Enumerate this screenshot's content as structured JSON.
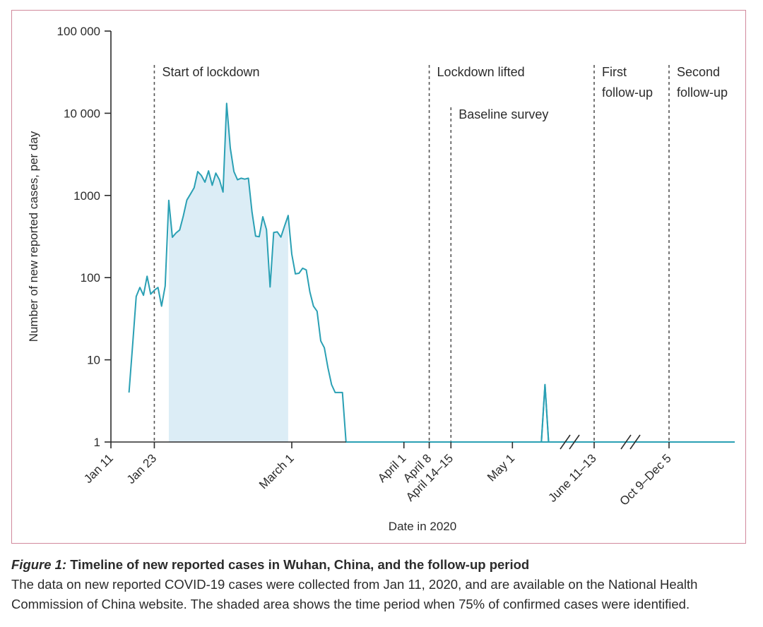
{
  "chart_data": {
    "type": "line",
    "title": "",
    "xlabel": "Date in 2020",
    "ylabel": "Number of new reported cases, per day",
    "yscale": "log",
    "ylim": [
      1,
      100000
    ],
    "y_ticks": [
      {
        "value": 1,
        "label": "1"
      },
      {
        "value": 10,
        "label": "10"
      },
      {
        "value": 100,
        "label": "100"
      },
      {
        "value": 1000,
        "label": "1000"
      },
      {
        "value": 10000,
        "label": "10 000"
      },
      {
        "value": 100000,
        "label": "100 000"
      }
    ],
    "x_unit": "days since Jan 11, 2020",
    "x_ticks": [
      {
        "day": 0,
        "label": "Jan 11"
      },
      {
        "day": 12,
        "label": "Jan 23"
      },
      {
        "day": 50,
        "label": "March 1"
      },
      {
        "day": 81,
        "label": "April 1"
      },
      {
        "day": 88,
        "label": "April 8"
      },
      {
        "day": 94,
        "label": "April 14–15"
      },
      {
        "day": 111,
        "label": "May 1"
      },
      {
        "day": 152,
        "label": "June 11–13"
      },
      {
        "day": 272,
        "label": "Oct 9–Dec 5"
      }
    ],
    "axis_breaks": [
      "between May and June",
      "between June and October"
    ],
    "series": [
      {
        "name": "New reported cases",
        "color": "#2aa0b4",
        "points": [
          [
            5,
            4
          ],
          [
            6,
            15
          ],
          [
            7,
            59
          ],
          [
            8,
            76
          ],
          [
            9,
            61
          ],
          [
            10,
            104
          ],
          [
            11,
            63
          ],
          [
            12,
            70
          ],
          [
            13,
            76
          ],
          [
            14,
            45
          ],
          [
            15,
            79
          ],
          [
            16,
            870
          ],
          [
            17,
            310
          ],
          [
            18,
            350
          ],
          [
            19,
            380
          ],
          [
            20,
            560
          ],
          [
            21,
            880
          ],
          [
            22,
            1040
          ],
          [
            23,
            1240
          ],
          [
            24,
            1950
          ],
          [
            25,
            1750
          ],
          [
            26,
            1450
          ],
          [
            27,
            1990
          ],
          [
            28,
            1330
          ],
          [
            29,
            1870
          ],
          [
            30,
            1550
          ],
          [
            31,
            1100
          ],
          [
            32,
            13200
          ],
          [
            33,
            3760
          ],
          [
            34,
            1950
          ],
          [
            35,
            1550
          ],
          [
            36,
            1620
          ],
          [
            37,
            1580
          ],
          [
            38,
            1620
          ],
          [
            39,
            630
          ],
          [
            40,
            320
          ],
          [
            41,
            315
          ],
          [
            42,
            550
          ],
          [
            43,
            385
          ],
          [
            44,
            77
          ],
          [
            45,
            355
          ],
          [
            46,
            360
          ],
          [
            47,
            311
          ],
          [
            48,
            425
          ],
          [
            49,
            570
          ],
          [
            50,
            193
          ],
          [
            51,
            111
          ],
          [
            52,
            113
          ],
          [
            53,
            130
          ],
          [
            54,
            124
          ],
          [
            55,
            67
          ],
          [
            56,
            45
          ],
          [
            57,
            39
          ],
          [
            58,
            17
          ],
          [
            59,
            14
          ],
          [
            60,
            8
          ],
          [
            61,
            5
          ],
          [
            62,
            4
          ],
          [
            64,
            4
          ],
          [
            65,
            1
          ],
          [
            119,
            1
          ],
          [
            120,
            5
          ],
          [
            121,
            1
          ],
          [
            329,
            1
          ]
        ]
      }
    ],
    "shaded_region": {
      "start_day": 16,
      "end_day": 49,
      "color": "#dcedf6",
      "meaning": "75% of confirmed cases identified"
    },
    "event_lines": [
      {
        "day": 12,
        "label_lines": [
          "Start of lockdown"
        ]
      },
      {
        "day": 88,
        "label_lines": [
          "Lockdown lifted"
        ]
      },
      {
        "day": 94,
        "label_lines": [
          "Baseline survey"
        ]
      },
      {
        "day": 152,
        "label_lines": [
          "First",
          "follow-up"
        ]
      },
      {
        "day": 272,
        "label_lines": [
          "Second",
          "follow-up"
        ]
      }
    ],
    "grid": false,
    "legend": "none"
  },
  "caption": {
    "label": "Figure 1:",
    "title": "Timeline of new reported cases in Wuhan, China, and the follow-up period",
    "body_line1": "The data on new reported COVID-19 cases were collected from Jan 11, 2020, and are available on the National Health",
    "body_line2": "Commission of China website. The shaded area shows the time period when 75% of confirmed cases were identified."
  },
  "colors": {
    "frame": "#d1899c",
    "line": "#2aa0b4",
    "shade": "#dcedf6",
    "axis": "#2b2b2b",
    "event_line": "#555555"
  }
}
